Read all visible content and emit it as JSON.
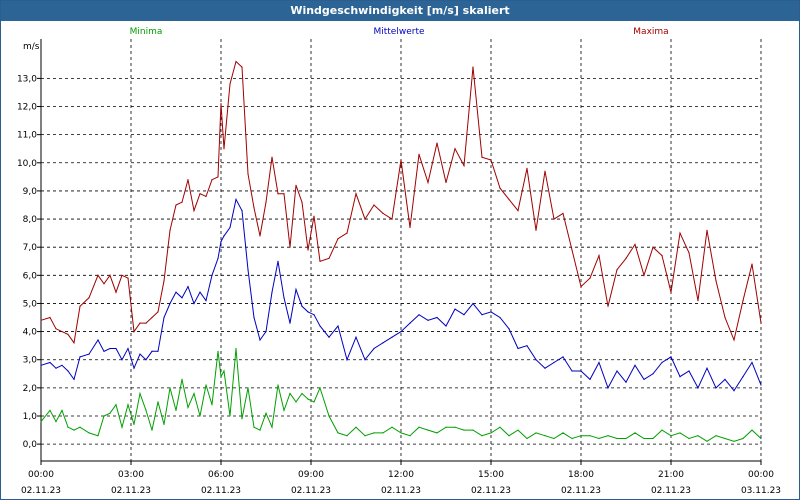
{
  "window": {
    "title": "Windgeschwindigkeit [m/s] skaliert"
  },
  "chart_data": {
    "type": "line",
    "title": "Windgeschwindigkeit [m/s] skaliert",
    "ylabel": "m/s",
    "ylim": [
      -0.6,
      14.4
    ],
    "yticks": [
      "0,0",
      "1,0",
      "2,0",
      "3,0",
      "4,0",
      "5,0",
      "6,0",
      "7,0",
      "8,0",
      "9,0",
      "10,0",
      "11,0",
      "12,0",
      "13,0"
    ],
    "ytick_values": [
      0,
      1,
      2,
      3,
      4,
      5,
      6,
      7,
      8,
      9,
      10,
      11,
      12,
      13
    ],
    "xlim": [
      0,
      24
    ],
    "xticks": [
      {
        "time": "00:00",
        "date": "02.11.23",
        "h": 0
      },
      {
        "time": "03:00",
        "date": "02.11.23",
        "h": 3
      },
      {
        "time": "06:00",
        "date": "02.11.23",
        "h": 6
      },
      {
        "time": "09:00",
        "date": "02.11.23",
        "h": 9
      },
      {
        "time": "12:00",
        "date": "02.11.23",
        "h": 12
      },
      {
        "time": "15:00",
        "date": "02.11.23",
        "h": 15
      },
      {
        "time": "18:00",
        "date": "02.11.23",
        "h": 18
      },
      {
        "time": "21:00",
        "date": "02.11.23",
        "h": 21
      },
      {
        "time": "00:00",
        "date": "03.11.23",
        "h": 24
      }
    ],
    "grid": true,
    "series": [
      {
        "name": "Minima",
        "color": "#00a000",
        "x": [
          0,
          0.3,
          0.5,
          0.7,
          0.9,
          1.1,
          1.3,
          1.6,
          1.9,
          2.1,
          2.3,
          2.5,
          2.7,
          2.9,
          3.1,
          3.3,
          3.5,
          3.7,
          3.9,
          4.1,
          4.3,
          4.5,
          4.7,
          4.9,
          5.1,
          5.3,
          5.5,
          5.7,
          5.9,
          6.0,
          6.1,
          6.3,
          6.5,
          6.7,
          6.9,
          7.1,
          7.3,
          7.5,
          7.7,
          7.9,
          8.1,
          8.3,
          8.5,
          8.7,
          8.9,
          9.1,
          9.3,
          9.6,
          9.9,
          10.2,
          10.5,
          10.8,
          11.1,
          11.4,
          11.7,
          12.0,
          12.3,
          12.6,
          12.9,
          13.2,
          13.5,
          13.8,
          14.1,
          14.4,
          14.7,
          15.0,
          15.3,
          15.6,
          15.9,
          16.2,
          16.5,
          16.8,
          17.1,
          17.4,
          17.7,
          18.0,
          18.3,
          18.6,
          18.9,
          19.2,
          19.5,
          19.8,
          20.1,
          20.4,
          20.7,
          21.0,
          21.3,
          21.6,
          21.9,
          22.2,
          22.5,
          22.8,
          23.1,
          23.4,
          23.7,
          24.0
        ],
        "values": [
          0.8,
          1.2,
          0.8,
          1.2,
          0.6,
          0.5,
          0.6,
          0.4,
          0.3,
          1.0,
          1.1,
          1.4,
          0.6,
          1.4,
          0.7,
          1.8,
          1.2,
          0.5,
          1.5,
          0.7,
          2.0,
          1.2,
          2.3,
          1.3,
          1.8,
          1.0,
          2.1,
          1.4,
          3.3,
          2.4,
          2.6,
          1.0,
          3.4,
          0.9,
          2.0,
          0.6,
          0.5,
          1.1,
          0.6,
          2.1,
          1.2,
          1.8,
          1.5,
          1.8,
          1.6,
          1.5,
          2.0,
          1.0,
          0.4,
          0.3,
          0.6,
          0.3,
          0.4,
          0.4,
          0.6,
          0.4,
          0.3,
          0.6,
          0.5,
          0.4,
          0.6,
          0.6,
          0.5,
          0.5,
          0.3,
          0.4,
          0.6,
          0.3,
          0.5,
          0.2,
          0.4,
          0.3,
          0.2,
          0.4,
          0.2,
          0.3,
          0.3,
          0.2,
          0.3,
          0.2,
          0.2,
          0.4,
          0.2,
          0.2,
          0.5,
          0.3,
          0.4,
          0.2,
          0.3,
          0.1,
          0.3,
          0.2,
          0.1,
          0.2,
          0.5,
          0.2
        ]
      },
      {
        "name": "Mittelwerte",
        "color": "#0000c0",
        "x": [
          0,
          0.3,
          0.5,
          0.7,
          0.9,
          1.1,
          1.3,
          1.6,
          1.9,
          2.1,
          2.3,
          2.5,
          2.7,
          2.9,
          3.1,
          3.3,
          3.5,
          3.7,
          3.9,
          4.1,
          4.3,
          4.5,
          4.7,
          4.9,
          5.1,
          5.3,
          5.5,
          5.7,
          5.9,
          6.0,
          6.1,
          6.3,
          6.5,
          6.7,
          6.9,
          7.1,
          7.3,
          7.5,
          7.7,
          7.9,
          8.1,
          8.3,
          8.5,
          8.7,
          8.9,
          9.1,
          9.3,
          9.6,
          9.9,
          10.2,
          10.5,
          10.8,
          11.1,
          11.4,
          11.7,
          12.0,
          12.3,
          12.6,
          12.9,
          13.2,
          13.5,
          13.8,
          14.1,
          14.4,
          14.7,
          15.0,
          15.3,
          15.6,
          15.9,
          16.2,
          16.5,
          16.8,
          17.1,
          17.4,
          17.7,
          18.0,
          18.3,
          18.6,
          18.9,
          19.2,
          19.5,
          19.8,
          20.1,
          20.4,
          20.7,
          21.0,
          21.3,
          21.6,
          21.9,
          22.2,
          22.5,
          22.8,
          23.1,
          23.4,
          23.7,
          24.0
        ],
        "values": [
          2.8,
          2.9,
          2.7,
          2.8,
          2.6,
          2.3,
          3.1,
          3.2,
          3.7,
          3.3,
          3.4,
          3.4,
          3.0,
          3.4,
          2.7,
          3.2,
          3.0,
          3.3,
          3.3,
          4.5,
          5.0,
          5.4,
          5.2,
          5.6,
          5.0,
          5.4,
          5.1,
          6.0,
          6.6,
          7.2,
          7.4,
          7.7,
          8.7,
          8.3,
          6.2,
          4.5,
          3.7,
          4.0,
          5.4,
          6.5,
          5.2,
          4.3,
          5.5,
          4.9,
          4.7,
          4.6,
          4.2,
          3.8,
          4.2,
          3.0,
          3.8,
          3.0,
          3.4,
          3.6,
          3.8,
          4.0,
          4.3,
          4.6,
          4.4,
          4.5,
          4.2,
          4.8,
          4.6,
          5.0,
          4.6,
          4.7,
          4.5,
          4.1,
          3.4,
          3.5,
          3.0,
          2.7,
          2.9,
          3.1,
          2.6,
          2.6,
          2.3,
          2.9,
          2.0,
          2.6,
          2.2,
          2.8,
          2.3,
          2.5,
          2.9,
          3.1,
          2.4,
          2.6,
          2.0,
          2.7,
          2.0,
          2.3,
          1.9,
          2.4,
          2.9,
          2.1
        ]
      },
      {
        "name": "Maxima",
        "color": "#a00000",
        "x": [
          0,
          0.3,
          0.5,
          0.7,
          0.9,
          1.1,
          1.3,
          1.6,
          1.9,
          2.1,
          2.3,
          2.5,
          2.7,
          2.9,
          3.1,
          3.3,
          3.5,
          3.7,
          3.9,
          4.1,
          4.3,
          4.5,
          4.7,
          4.9,
          5.1,
          5.3,
          5.5,
          5.7,
          5.9,
          6.0,
          6.1,
          6.3,
          6.5,
          6.7,
          6.9,
          7.1,
          7.3,
          7.5,
          7.7,
          7.9,
          8.1,
          8.3,
          8.5,
          8.7,
          8.9,
          9.1,
          9.3,
          9.6,
          9.9,
          10.2,
          10.5,
          10.8,
          11.1,
          11.4,
          11.7,
          12.0,
          12.3,
          12.6,
          12.9,
          13.2,
          13.5,
          13.8,
          14.1,
          14.4,
          14.7,
          15.0,
          15.3,
          15.6,
          15.9,
          16.2,
          16.5,
          16.8,
          17.1,
          17.4,
          17.7,
          18.0,
          18.3,
          18.6,
          18.9,
          19.2,
          19.5,
          19.8,
          20.1,
          20.4,
          20.7,
          21.0,
          21.3,
          21.6,
          21.9,
          22.2,
          22.5,
          22.8,
          23.1,
          23.4,
          23.7,
          24.0
        ],
        "values": [
          4.4,
          4.5,
          4.1,
          4.0,
          3.9,
          3.6,
          4.9,
          5.2,
          6.0,
          5.7,
          6.0,
          5.4,
          6.0,
          5.9,
          4.0,
          4.3,
          4.3,
          4.5,
          4.7,
          5.8,
          7.6,
          8.5,
          8.6,
          9.4,
          8.3,
          8.9,
          8.8,
          9.4,
          9.5,
          12.1,
          10.5,
          12.8,
          13.6,
          13.4,
          9.6,
          8.4,
          7.4,
          8.6,
          10.2,
          8.9,
          8.9,
          7.0,
          9.2,
          8.6,
          6.9,
          8.1,
          6.5,
          6.6,
          7.3,
          7.5,
          8.9,
          8.0,
          8.5,
          8.2,
          8.0,
          10.1,
          7.7,
          10.3,
          9.3,
          10.7,
          9.3,
          10.5,
          9.9,
          13.4,
          10.2,
          10.1,
          9.1,
          8.7,
          8.3,
          9.8,
          7.6,
          9.7,
          8.0,
          8.2,
          6.9,
          5.6,
          5.9,
          6.7,
          4.9,
          6.2,
          6.6,
          7.1,
          6.0,
          7.0,
          6.7,
          5.4,
          7.5,
          6.8,
          5.1,
          7.6,
          5.8,
          4.5,
          3.7,
          5.1,
          6.4,
          4.3
        ]
      }
    ]
  }
}
